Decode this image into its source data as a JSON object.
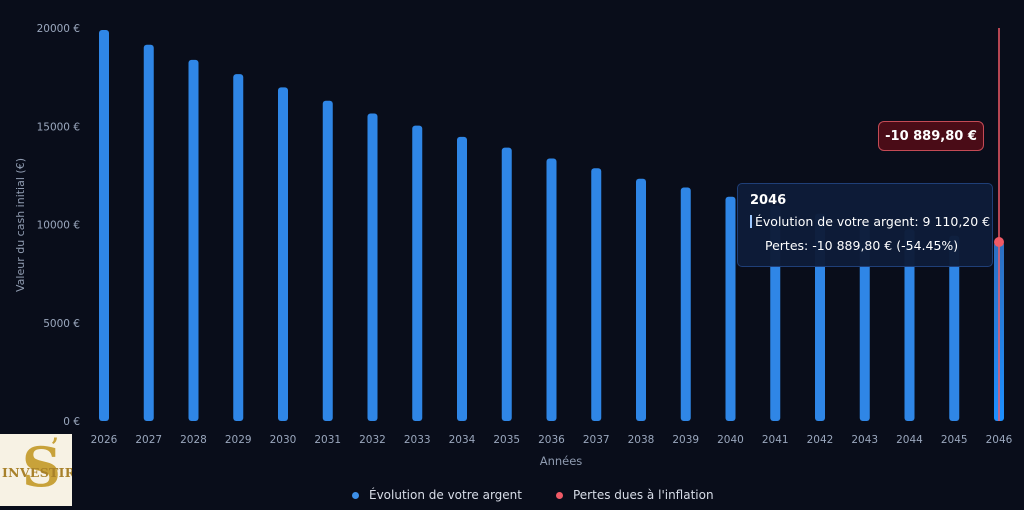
{
  "chart_data": {
    "type": "bar",
    "xlabel": "Années",
    "ylabel": "Valeur du cash initial (€)",
    "ylim": [
      0,
      20000
    ],
    "yticks": [
      "0 €",
      "5000 €",
      "10000 €",
      "15000 €",
      "20000 €"
    ],
    "yticks_values": [
      0,
      5000,
      10000,
      15000,
      20000
    ],
    "categories": [
      "2026",
      "2027",
      "2028",
      "2029",
      "2030",
      "2031",
      "2032",
      "2033",
      "2034",
      "2035",
      "2036",
      "2037",
      "2038",
      "2039",
      "2040",
      "2041",
      "2042",
      "2043",
      "2044",
      "2045",
      "2046"
    ],
    "series": [
      {
        "name": "Évolution de votre argent",
        "color": "#2f86e6",
        "values": [
          19900,
          19150,
          18380,
          17650,
          16980,
          16300,
          15650,
          15030,
          14460,
          13910,
          13360,
          12860,
          12330,
          11880,
          11410,
          10970,
          10550,
          10140,
          9750,
          9430,
          9110.2
        ]
      }
    ],
    "loss_series": {
      "name": "Pertes dues à l'inflation",
      "color": "#f05a66",
      "year": "2046",
      "value": -10889.8
    },
    "grid": false,
    "legend": "bottom"
  },
  "tooltip": {
    "year": "2046",
    "row1": "Évolution de votre argent: 9 110,20 €",
    "row2": "Pertes: -10 889,80 € (-54.45%)"
  },
  "loss_label": "-10 889,80 €",
  "legend": {
    "item1": "Évolution de votre argent",
    "item2": "Pertes dues à l'inflation"
  },
  "colors": {
    "background": "#090d1a",
    "bar": "#2f86e6",
    "loss": "#f05a66",
    "axis_text": "#9aa7bd"
  }
}
